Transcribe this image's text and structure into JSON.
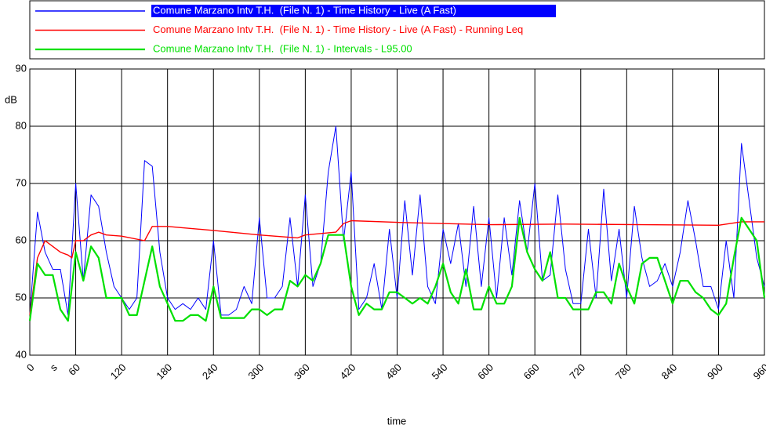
{
  "chart_data": {
    "type": "line",
    "x_label": "time",
    "x_unit": "s",
    "y_unit": "dB",
    "xlim": [
      0,
      960
    ],
    "xticks": [
      0,
      60,
      120,
      180,
      240,
      300,
      360,
      420,
      480,
      540,
      600,
      660,
      720,
      780,
      840,
      900,
      960
    ],
    "ylim": [
      40,
      90
    ],
    "yticks": [
      40,
      50,
      60,
      70,
      80,
      90
    ],
    "grid": true,
    "legend": "top",
    "x": [
      0,
      10,
      20,
      30,
      40,
      50,
      60,
      70,
      80,
      90,
      100,
      110,
      120,
      130,
      140,
      150,
      160,
      170,
      180,
      190,
      200,
      210,
      220,
      230,
      240,
      250,
      260,
      270,
      280,
      290,
      300,
      310,
      320,
      330,
      340,
      350,
      360,
      370,
      380,
      390,
      400,
      410,
      420,
      430,
      440,
      450,
      460,
      470,
      480,
      490,
      500,
      510,
      520,
      530,
      540,
      550,
      560,
      570,
      580,
      590,
      600,
      610,
      620,
      630,
      640,
      650,
      660,
      670,
      680,
      690,
      700,
      710,
      720,
      730,
      740,
      750,
      760,
      770,
      780,
      790,
      800,
      810,
      820,
      830,
      840,
      850,
      860,
      870,
      880,
      890,
      900,
      910,
      920,
      930,
      940,
      950,
      960
    ],
    "series": [
      {
        "name": "Comune Marzano Intv T.H.  (File N. 1) - Time History - Live (A Fast)",
        "color": "#0000ff",
        "values": [
          47,
          65,
          58,
          55,
          55,
          47,
          70,
          53,
          68,
          66,
          58,
          52,
          50,
          48,
          50,
          74,
          73,
          58,
          50,
          48,
          49,
          48,
          50,
          48,
          60,
          47,
          47,
          48,
          52,
          49,
          64,
          50,
          50,
          52,
          64,
          52,
          68,
          52,
          56,
          72,
          80,
          60,
          72,
          48,
          50,
          56,
          48,
          62,
          50,
          67,
          54,
          68,
          52,
          49,
          62,
          56,
          63,
          52,
          66,
          52,
          64,
          50,
          64,
          54,
          67,
          58,
          70,
          53,
          54,
          68,
          55,
          49,
          49,
          62,
          50,
          69,
          53,
          62,
          50,
          66,
          57,
          52,
          53,
          56,
          52,
          58,
          67,
          60,
          52,
          52,
          48,
          60,
          50,
          77,
          67,
          57,
          52
        ]
      },
      {
        "name": "Comune Marzano Intv T.H.  (File N. 1) - Time History - Live (A Fast) - Running Leq",
        "color": "#ff0000",
        "x": [
          0,
          10,
          20,
          30,
          40,
          50,
          55,
          60,
          70,
          80,
          90,
          100,
          120,
          150,
          160,
          180,
          240,
          300,
          350,
          360,
          400,
          410,
          420,
          480,
          600,
          700,
          800,
          900,
          930,
          960
        ],
        "values": [
          47,
          57,
          60,
          59,
          58,
          57.5,
          57,
          60,
          60,
          61,
          61.5,
          61,
          60.8,
          60,
          62.5,
          62.5,
          61.8,
          61,
          60.5,
          61,
          61.5,
          63,
          63.5,
          63.2,
          62.8,
          62.9,
          62.8,
          62.7,
          63.3,
          63.3
        ]
      },
      {
        "name": "Comune Marzano Intv T.H.  (File N. 1) - Intervals - L95.00",
        "color": "#00e000",
        "values": [
          46,
          56,
          54,
          54,
          48,
          46,
          58,
          53,
          59,
          57,
          50,
          50,
          50,
          47,
          47,
          53,
          59,
          52,
          49,
          46,
          46,
          47,
          47,
          46,
          52,
          46.5,
          46.5,
          46.5,
          46.5,
          48,
          48,
          47,
          48,
          48,
          53,
          52,
          54,
          53,
          56,
          61,
          61,
          61,
          52,
          47,
          49,
          48,
          48,
          51,
          51,
          50,
          49,
          50,
          49,
          52,
          56,
          51,
          49,
          55,
          48,
          48,
          52,
          49,
          49,
          52,
          64,
          58,
          55,
          53,
          58,
          50,
          50,
          48,
          48,
          48,
          51,
          51,
          49,
          56,
          52,
          49,
          56,
          57,
          57,
          53,
          49,
          53,
          53,
          51,
          50,
          48,
          47,
          49,
          57,
          64,
          62,
          60,
          50
        ]
      }
    ]
  }
}
